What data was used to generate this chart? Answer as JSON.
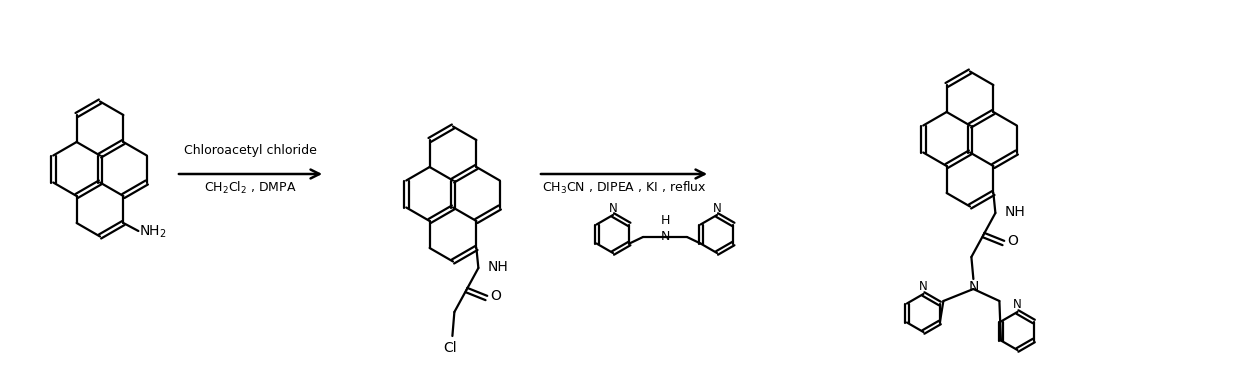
{
  "bg_color": "#ffffff",
  "line_color": "#000000",
  "arrow1_label_top": "Chloroacetyl chloride",
  "arrow1_label_bot": "CH$_2$Cl$_2$ , DMPA",
  "arrow2_label_top": "CH$_3$CN , DIPEA , KI , reflux",
  "figsize": [
    12.4,
    3.84
  ],
  "dpi": 100
}
